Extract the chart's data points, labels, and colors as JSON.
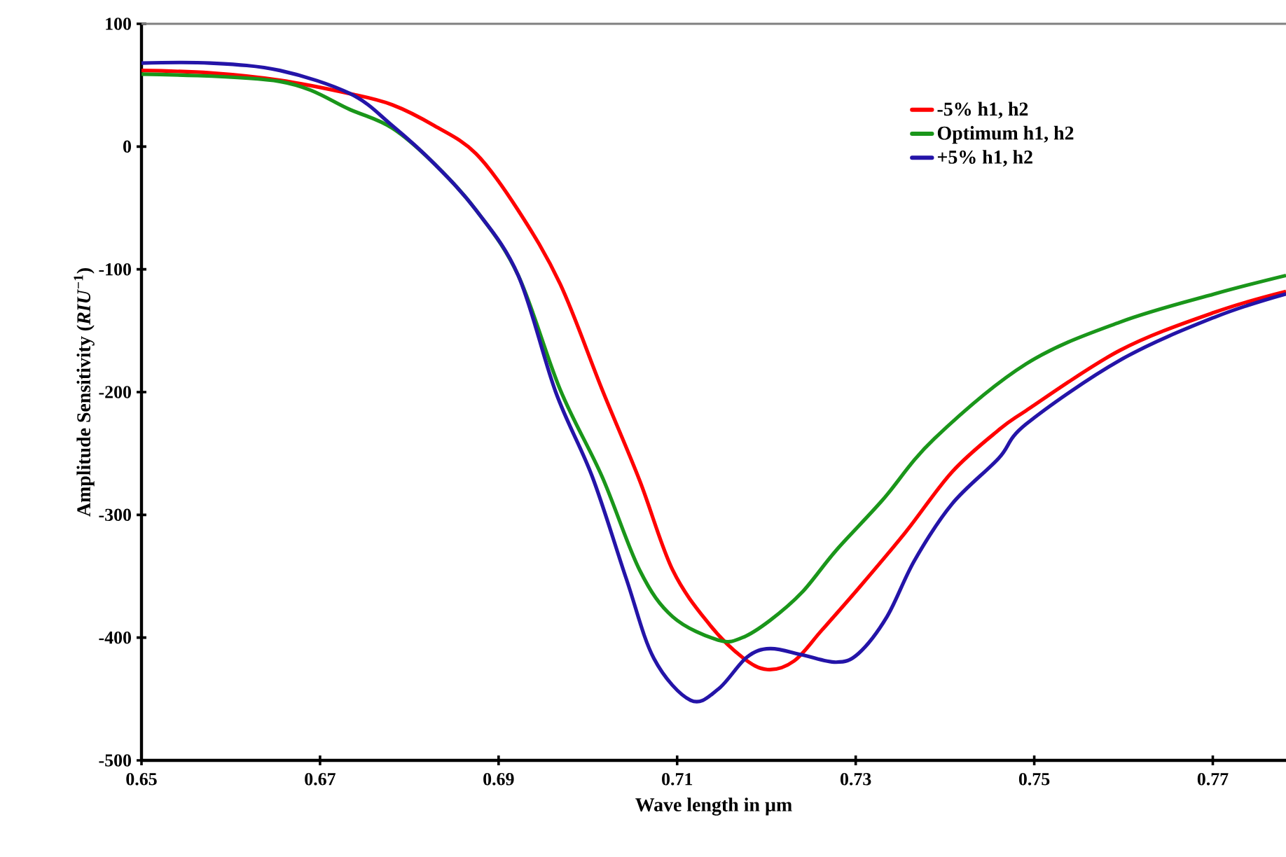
{
  "chart_data": {
    "type": "line",
    "xlabel": "Wave length in µm",
    "ylabel": "Amplitude Sensitivity (*RIU*$^{−1}$)",
    "xlim": [
      0.65,
      0.7782
    ],
    "xticks": [
      0.65,
      0.67,
      0.69,
      0.71,
      0.73,
      0.75,
      0.77
    ],
    "ylim": [
      -500,
      100
    ],
    "yticks": [
      -500,
      -400,
      -300,
      -200,
      -100,
      0,
      100
    ],
    "legend": "top right",
    "series": [
      {
        "name": "-5% h1, h2",
        "color": "#ff0000",
        "x": [
          0.65,
          0.6577,
          0.6655,
          0.6734,
          0.6781,
          0.6828,
          0.6875,
          0.6922,
          0.6969,
          0.7016,
          0.7058,
          0.7095,
          0.7137,
          0.7173,
          0.7201,
          0.7231,
          0.7262,
          0.7303,
          0.7356,
          0.7408,
          0.746,
          0.7491,
          0.7596,
          0.7702,
          0.7782
        ],
        "values": [
          62,
          60,
          54,
          43,
          34,
          17,
          -6,
          -52,
          -112,
          -198,
          -272,
          -345,
          -390,
          -416,
          -426,
          -419,
          -394,
          -360,
          -314,
          -265,
          -231,
          -215,
          -166,
          -135,
          -118
        ]
      },
      {
        "name": "Optimum h1, h2",
        "color": "#1a961a",
        "x": [
          0.65,
          0.6655,
          0.6734,
          0.6781,
          0.6828,
          0.6875,
          0.6922,
          0.6969,
          0.7016,
          0.7058,
          0.7095,
          0.7146,
          0.7173,
          0.7204,
          0.724,
          0.7278,
          0.733,
          0.7388,
          0.7491,
          0.7596,
          0.7702,
          0.7782
        ],
        "values": [
          59,
          53,
          30,
          15,
          -14,
          -52,
          -105,
          -198,
          -269,
          -345,
          -383,
          -402,
          -400,
          -386,
          -363,
          -329,
          -288,
          -238,
          -177,
          -143,
          -120,
          -105
        ]
      },
      {
        "name": "+5% h1, h2",
        "color": "#2414a8",
        "x": [
          0.65,
          0.6577,
          0.6655,
          0.6734,
          0.6781,
          0.6828,
          0.6875,
          0.6922,
          0.6964,
          0.7005,
          0.7043,
          0.7074,
          0.7115,
          0.7146,
          0.7178,
          0.7204,
          0.724,
          0.7278,
          0.7303,
          0.7335,
          0.7366,
          0.7408,
          0.746,
          0.7491,
          0.7596,
          0.7702,
          0.7782
        ],
        "values": [
          68,
          68,
          62,
          43,
          17,
          -14,
          -52,
          -105,
          -200,
          -269,
          -352,
          -417,
          -451,
          -442,
          -416,
          -409,
          -414,
          -420,
          -413,
          -383,
          -337,
          -291,
          -254,
          -226,
          -174,
          -139,
          -120
        ]
      }
    ]
  }
}
